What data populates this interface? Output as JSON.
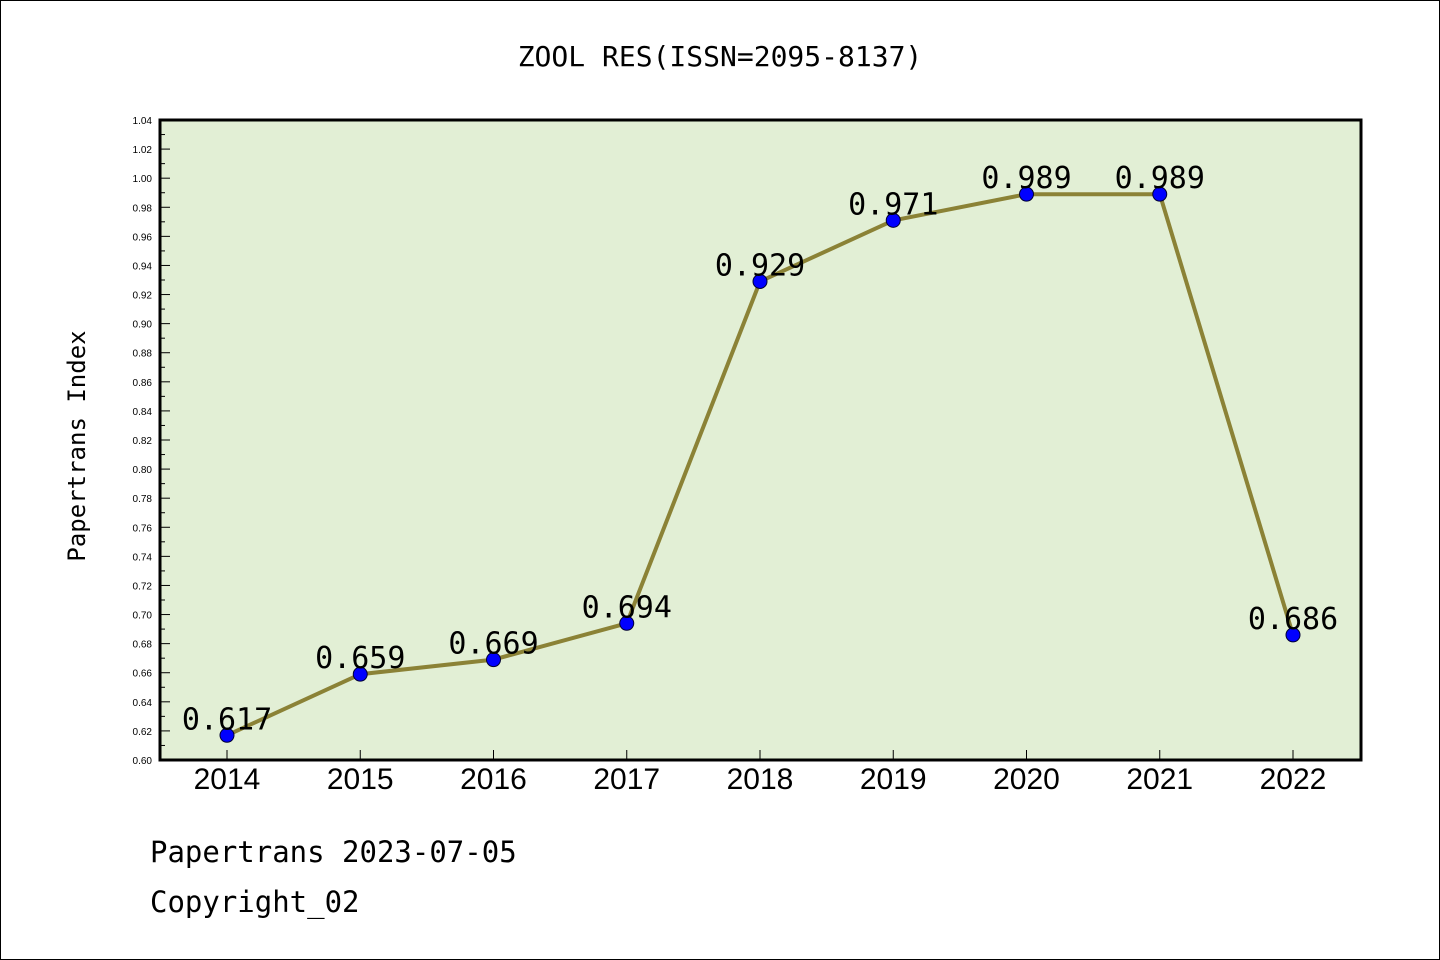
{
  "chart_data": {
    "type": "line",
    "title": "ZOOL RES(ISSN=2095-8137)",
    "ylabel": "Papertrans Index",
    "xlabel": "",
    "categories": [
      "2014",
      "2015",
      "2016",
      "2017",
      "2018",
      "2019",
      "2020",
      "2021",
      "2022"
    ],
    "series": [
      {
        "values": [
          0.617,
          0.659,
          0.669,
          0.694,
          0.929,
          0.971,
          0.989,
          0.989,
          0.686
        ]
      }
    ],
    "data_labels": [
      "0.617",
      "0.659",
      "0.669",
      "0.694",
      "0.929",
      "0.971",
      "0.989",
      "0.989",
      "0.686"
    ],
    "ylim": [
      0.6,
      1.04
    ],
    "yticks": [
      "0.60",
      "0.62",
      "0.64",
      "0.66",
      "0.68",
      "0.70",
      "0.72",
      "0.74",
      "0.76",
      "0.78",
      "0.80",
      "0.82",
      "0.84",
      "0.86",
      "0.88",
      "0.90",
      "0.92",
      "0.94",
      "0.96",
      "0.98",
      "1.00",
      "1.02",
      "1.04"
    ],
    "grid": false,
    "colors": {
      "plot_background": "#e2efd5",
      "line": "#8b8236",
      "marker": "#0000ff"
    }
  },
  "footer": {
    "line1": "Papertrans 2023-07-05",
    "line2": "Copyright_02"
  }
}
